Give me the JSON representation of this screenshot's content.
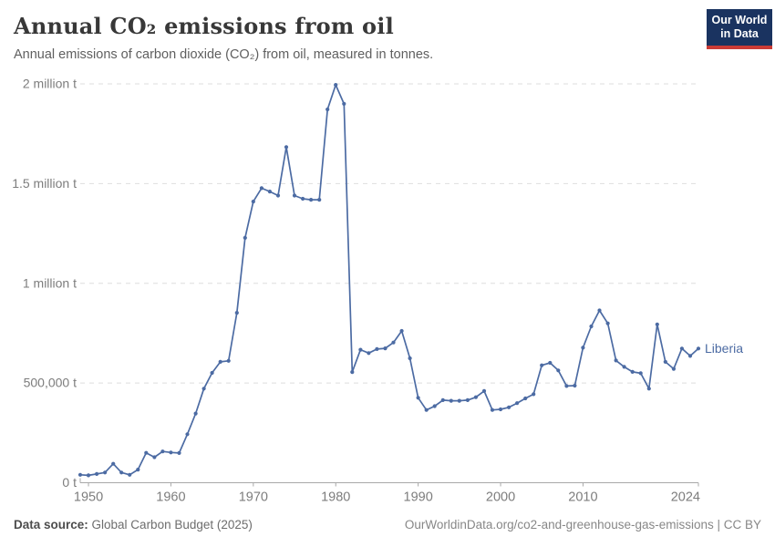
{
  "header": {
    "title": "Annual CO₂ emissions from oil",
    "subtitle": "Annual emissions of carbon dioxide (CO₂) from oil, measured in tonnes.",
    "logo": {
      "line1": "Our World",
      "line2": "in Data"
    }
  },
  "footer": {
    "source_label": "Data source:",
    "source_value": " Global Carbon Budget (2025)",
    "link": "OurWorldinData.org/co2-and-greenhouse-gas-emissions | CC BY"
  },
  "colors": {
    "line": "#4c6ba3",
    "grid": "#dedede",
    "axis": "#a8a8a8",
    "tick_label": "#7d7d7d",
    "logo_bg": "#1a3360",
    "logo_accent": "#cb3b36"
  },
  "chart_data": {
    "type": "line",
    "title": "Annual CO₂ emissions from oil",
    "subtitle": "Annual emissions of carbon dioxide (CO₂) from oil, measured in tonnes.",
    "unit": "tonnes",
    "xlabel": "",
    "ylabel": "",
    "x_range": [
      1949,
      2024
    ],
    "y_range": [
      0,
      2000000
    ],
    "grid": true,
    "legend_position": "end-of-line",
    "y_ticks": [
      {
        "value": 0,
        "label": "0 t"
      },
      {
        "value": 500000,
        "label": "500,000 t"
      },
      {
        "value": 1000000,
        "label": "1 million t"
      },
      {
        "value": 1500000,
        "label": "1.5 million t"
      },
      {
        "value": 2000000,
        "label": "2 million t"
      }
    ],
    "x_ticks": [
      {
        "value": 1950,
        "label": "1950"
      },
      {
        "value": 1960,
        "label": "1960"
      },
      {
        "value": 1970,
        "label": "1970"
      },
      {
        "value": 1980,
        "label": "1980"
      },
      {
        "value": 1990,
        "label": "1990"
      },
      {
        "value": 2000,
        "label": "2000"
      },
      {
        "value": 2010,
        "label": "2010"
      },
      {
        "value": 2024,
        "label": "2024"
      }
    ],
    "series": [
      {
        "name": "Liberia",
        "color": "#4c6ba3",
        "years": [
          1949,
          1950,
          1951,
          1952,
          1953,
          1954,
          1955,
          1956,
          1957,
          1958,
          1959,
          1960,
          1961,
          1962,
          1963,
          1964,
          1965,
          1966,
          1967,
          1968,
          1969,
          1970,
          1971,
          1972,
          1973,
          1974,
          1975,
          1976,
          1977,
          1978,
          1979,
          1980,
          1981,
          1982,
          1983,
          1984,
          1985,
          1986,
          1987,
          1988,
          1989,
          1990,
          1991,
          1992,
          1993,
          1994,
          1995,
          1996,
          1997,
          1998,
          1999,
          2000,
          2001,
          2002,
          2003,
          2004,
          2005,
          2006,
          2007,
          2008,
          2009,
          2010,
          2011,
          2012,
          2013,
          2014,
          2015,
          2016,
          2017,
          2018,
          2019,
          2020,
          2021,
          2022,
          2023,
          2024
        ],
        "values": [
          40000,
          37000,
          44000,
          51000,
          95000,
          51000,
          40000,
          66000,
          150000,
          128000,
          157000,
          152000,
          149000,
          243000,
          347000,
          472000,
          551000,
          606000,
          611000,
          852000,
          1228000,
          1410000,
          1477000,
          1460000,
          1440000,
          1683000,
          1440000,
          1424000,
          1419000,
          1419000,
          1872000,
          1995000,
          1900000,
          555000,
          667000,
          650000,
          670000,
          674000,
          703000,
          761000,
          624000,
          426000,
          365000,
          384000,
          414000,
          411000,
          411000,
          414000,
          429000,
          460000,
          365000,
          368000,
          378000,
          399000,
          423000,
          444000,
          589000,
          601000,
          563000,
          485000,
          487000,
          677000,
          784000,
          864000,
          799000,
          613000,
          581000,
          556000,
          549000,
          472000,
          794000,
          606000,
          571000,
          673000,
          636000,
          673000
        ]
      }
    ]
  }
}
